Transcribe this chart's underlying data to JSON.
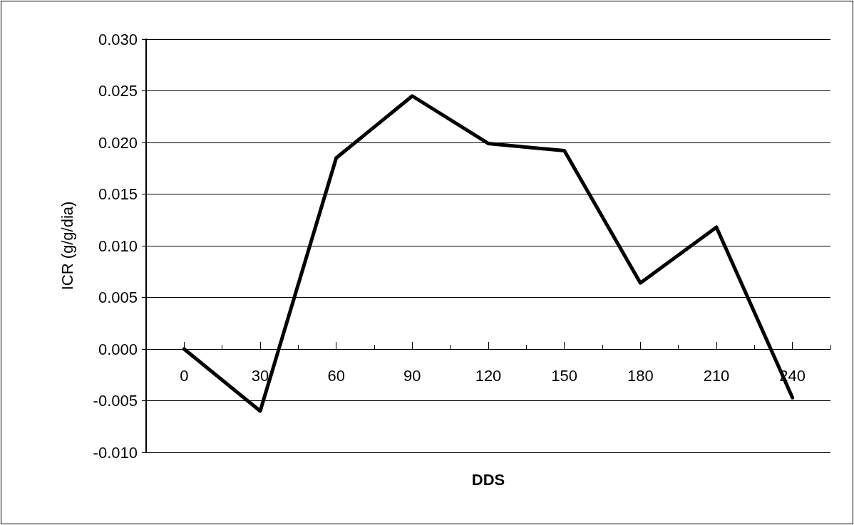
{
  "chart_data": {
    "type": "line",
    "xlabel": "DDS",
    "ylabel": "ICR (g/g/dia)",
    "categories": [
      "0",
      "30",
      "60",
      "90",
      "120",
      "150",
      "180",
      "210",
      "240"
    ],
    "series": [
      {
        "color": "#000000",
        "values": [
          0.0,
          -0.006,
          0.0185,
          0.0245,
          0.0199,
          0.0192,
          0.0064,
          0.0118,
          -0.0047
        ]
      }
    ],
    "ylim": [
      -0.01,
      0.03
    ],
    "yticks": [
      {
        "value": -0.01,
        "label": "-0.010"
      },
      {
        "value": -0.005,
        "label": "-0.005"
      },
      {
        "value": 0,
        "label": "0.000"
      },
      {
        "value": 0.005,
        "label": "0.005"
      },
      {
        "value": 0.01,
        "label": "0.010"
      },
      {
        "value": 0.015,
        "label": "0.015"
      },
      {
        "value": 0.02,
        "label": "0.020"
      },
      {
        "value": 0.025,
        "label": "0.025"
      },
      {
        "value": 0.03,
        "label": "0.030"
      }
    ],
    "grid": "y",
    "marker": "none",
    "line_style": "solid"
  }
}
